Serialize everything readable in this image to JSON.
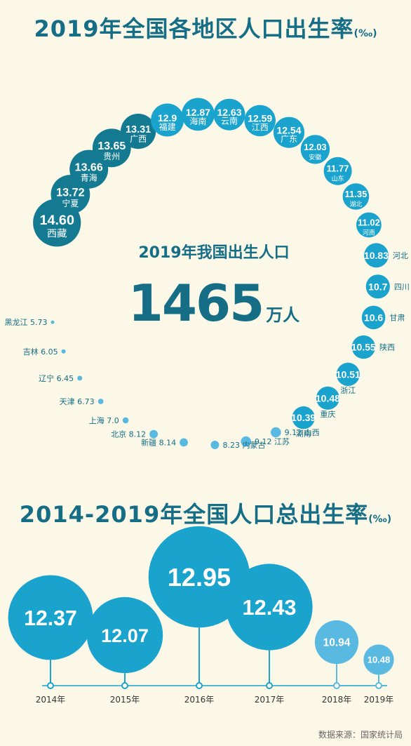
{
  "title1": {
    "text": "2019年全国各地区人口出生率",
    "unit": "(‰)"
  },
  "center": {
    "title": "2019年我国出生人口",
    "number": "1465",
    "unit": "万人"
  },
  "title2": {
    "text": "2014-2019年全国人口总出生率",
    "unit": "(‰)"
  },
  "source": "数据来源：国家统计局",
  "colors": {
    "dark": "#147a92",
    "mid": "#1aa3cc",
    "light": "#5ab9e0",
    "text": "#156e86",
    "bg": "#fbf8e8"
  },
  "chart_data": [
    {
      "type": "bubble",
      "title": "2019年全国各地区人口出生率(‰)",
      "categories": [
        "西藏",
        "宁夏",
        "青海",
        "贵州",
        "广西",
        "福建",
        "海南",
        "云南",
        "江西",
        "广东",
        "安徽",
        "山东",
        "湖北",
        "河南",
        "河北",
        "四川",
        "甘肃",
        "陕西",
        "浙江",
        "重庆",
        "湖南",
        "山西",
        "江苏",
        "内蒙古",
        "新疆",
        "北京",
        "上海",
        "天津",
        "辽宁",
        "吉林",
        "黑龙江"
      ],
      "values": [
        14.6,
        13.72,
        13.66,
        13.65,
        13.31,
        12.9,
        12.87,
        12.63,
        12.59,
        12.54,
        12.03,
        11.77,
        11.35,
        11.02,
        10.83,
        10.7,
        10.6,
        10.55,
        10.51,
        10.48,
        10.39,
        9.12,
        9.12,
        8.23,
        8.14,
        8.12,
        7.0,
        6.73,
        6.45,
        6.05,
        5.73
      ],
      "labels": [
        "14.60",
        "13.72",
        "13.66",
        "13.65",
        "13.31",
        "12.9",
        "12.87",
        "12.63",
        "12.59",
        "12.54",
        "12.03",
        "11.77",
        "11.35",
        "11.02",
        "10.83",
        "10.7",
        "10.6",
        "10.55",
        "10.51",
        "10.48",
        "10.39",
        "9.12",
        "9.12",
        "8.23",
        "8.14",
        "8.12",
        "7.0",
        "6.73",
        "6.45",
        "6.05",
        "5.73"
      ]
    },
    {
      "type": "bubble",
      "title": "2014-2019年全国人口总出生率(‰)",
      "categories": [
        "2014年",
        "2015年",
        "2016年",
        "2017年",
        "2018年",
        "2019年"
      ],
      "values": [
        12.37,
        12.07,
        12.95,
        12.43,
        10.94,
        10.48
      ],
      "labels": [
        "12.37",
        "12.07",
        "12.95",
        "12.43",
        "10.94",
        "10.48"
      ]
    }
  ]
}
